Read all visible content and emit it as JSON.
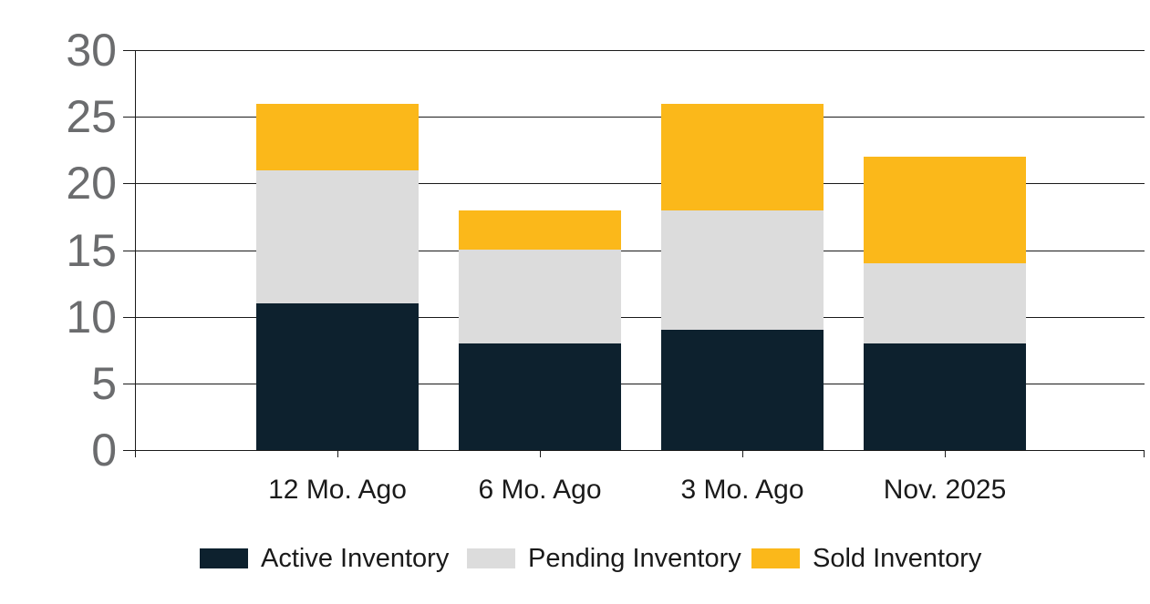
{
  "chart_data": {
    "type": "bar",
    "stacked": true,
    "categories": [
      "12 Mo. Ago",
      "6 Mo. Ago",
      "3 Mo. Ago",
      "Nov. 2025"
    ],
    "series": [
      {
        "name": "Active Inventory",
        "color": "#0d212e",
        "values": [
          11,
          8,
          9,
          8
        ]
      },
      {
        "name": "Pending Inventory",
        "color": "#dcdcdc",
        "values": [
          10,
          7,
          9,
          6
        ]
      },
      {
        "name": "Sold Inventory",
        "color": "#fbb81a",
        "values": [
          5,
          3,
          8,
          8
        ]
      }
    ],
    "totals": [
      26,
      18,
      26,
      22
    ],
    "ylim": [
      0,
      30
    ],
    "ytick_step": 5,
    "ytick_labels": [
      "0",
      "5",
      "10",
      "15",
      "20",
      "25",
      "30"
    ],
    "grid": true,
    "legend_position": "bottom"
  },
  "colors": {
    "grid_line": "#1a1a1a",
    "axis_line": "#1a1a1a",
    "y_tick_label": "#6b6c6e",
    "x_tick_label": "#1a1a1a",
    "legend_text": "#1a1a1a",
    "background": "#ffffff"
  }
}
